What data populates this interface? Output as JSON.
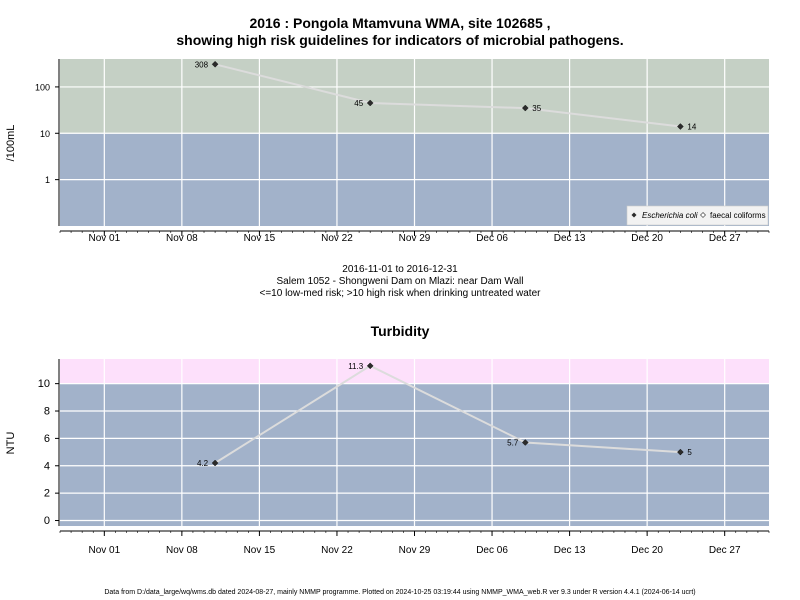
{
  "chart1": {
    "title_line1": "2016 : Pongola Mtamvuna WMA, site 102685 ,",
    "title_line2": "showing high risk guidelines for indicators of microbial pathogens.",
    "ylabel": "/100mL",
    "legend": {
      "ecoli": "Escherichia coli",
      "faecal": "faecal coliforms"
    }
  },
  "info": {
    "date_range": "2016-11-01 to 2016-12-31",
    "site": "Salem 1052 - Shongweni Dam on Mlazi: near Dam Wall",
    "risk_note": "<=10 low-med risk; >10 high risk when drinking untreated water"
  },
  "chart2": {
    "title": "Turbidity",
    "ylabel": "NTU"
  },
  "footer": "Data from D:/data_large/wq/wms.db dated 2024-08-27, mainly NMMP programme. Plotted on 2024-10-25 03:19:44 using NMMP_WMA_web.R ver 9.3 under R version 4.4.1 (2024-06-14 ucrt)",
  "colors": {
    "low_risk_band": "#a2b2ca",
    "high_risk_band_microbial": "#c5d0c5",
    "high_risk_band_turbidity": "#fde0fb",
    "series_line": "#dcdcdc",
    "marker": "#2b2b2b"
  },
  "chart_data": [
    {
      "type": "line",
      "yscale": "log",
      "xlim": [
        "2016-10-28",
        "2016-12-31"
      ],
      "ylim": [
        0.1,
        400
      ],
      "x_tick_labels": [
        "Nov 01",
        "Nov 08",
        "Nov 15",
        "Nov 22",
        "Nov 29",
        "Dec 06",
        "Dec 13",
        "Dec 20",
        "Dec 27"
      ],
      "y_tick_labels": [
        "1",
        "10",
        "100"
      ],
      "threshold": 10,
      "grid": true,
      "legend_position": "bottom-right",
      "series": [
        {
          "name": "Escherichia coli",
          "points": [
            {
              "x": "2016-11-11",
              "y": 308,
              "label": "308"
            },
            {
              "x": "2016-11-25",
              "y": 45,
              "label": "45"
            },
            {
              "x": "2016-12-09",
              "y": 35,
              "label": "35"
            },
            {
              "x": "2016-12-23",
              "y": 14,
              "label": "14"
            }
          ]
        }
      ]
    },
    {
      "type": "line",
      "yscale": "linear",
      "xlim": [
        "2016-10-28",
        "2016-12-31"
      ],
      "ylim": [
        -0.4,
        11.8
      ],
      "x_tick_labels": [
        "Nov 01",
        "Nov 08",
        "Nov 15",
        "Nov 22",
        "Nov 29",
        "Dec 06",
        "Dec 13",
        "Dec 20",
        "Dec 27"
      ],
      "y_tick_labels": [
        "0",
        "2",
        "4",
        "6",
        "8",
        "10"
      ],
      "threshold": 10,
      "grid": true,
      "series": [
        {
          "name": "",
          "points": [
            {
              "x": "2016-11-11",
              "y": 4.2,
              "label": "4.2"
            },
            {
              "x": "2016-11-25",
              "y": 11.3,
              "label": "11.3"
            },
            {
              "x": "2016-12-09",
              "y": 5.7,
              "label": "5.7"
            },
            {
              "x": "2016-12-23",
              "y": 5,
              "label": "5"
            }
          ]
        }
      ]
    }
  ]
}
